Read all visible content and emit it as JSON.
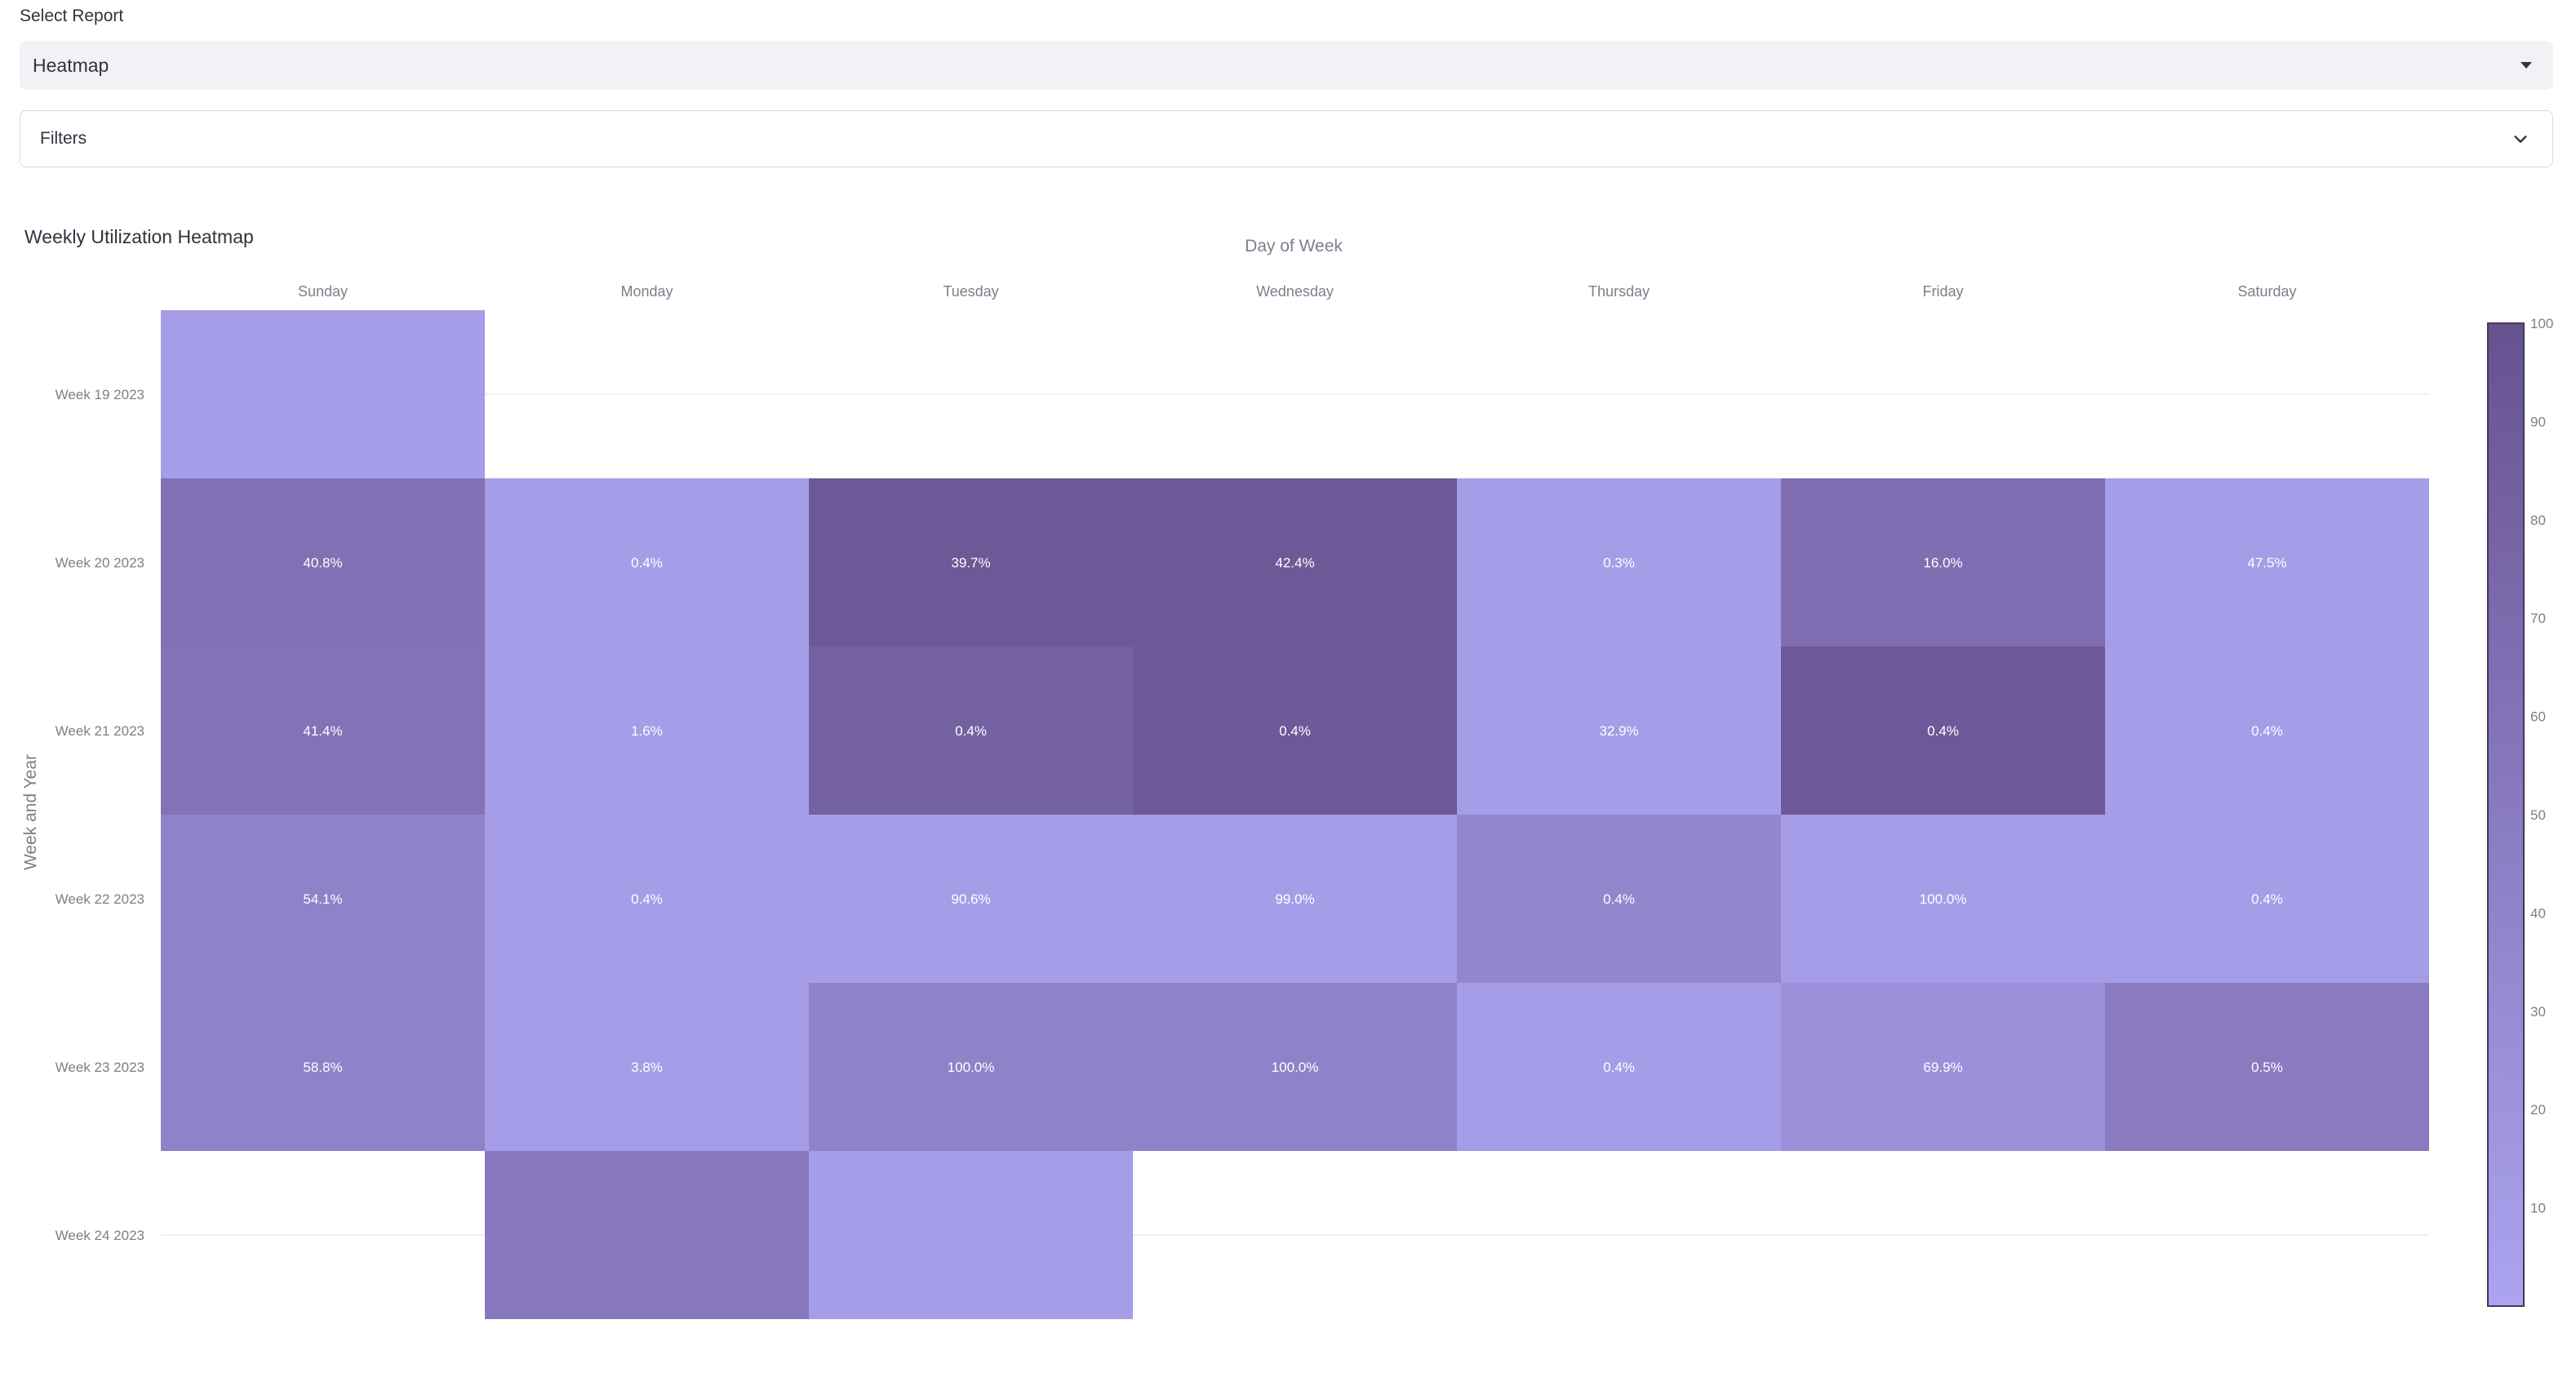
{
  "report_select": {
    "label": "Select Report",
    "value": "Heatmap"
  },
  "filters": {
    "label": "Filters"
  },
  "chart_data": {
    "type": "heatmap",
    "title": "Weekly Utilization Heatmap",
    "xlabel": "Day of Week",
    "ylabel": "Week and Year",
    "x": [
      "Sunday",
      "Monday",
      "Tuesday",
      "Wednesday",
      "Thursday",
      "Friday",
      "Saturday"
    ],
    "y": [
      "Week 19 2023",
      "Week 20 2023",
      "Week 21 2023",
      "Week 22 2023",
      "Week 23 2023",
      "Week 24 2023"
    ],
    "cells": [
      {
        "row": 0,
        "col": 0,
        "color_value": 8,
        "label": ""
      },
      {
        "row": 1,
        "col": 0,
        "color_value": 62,
        "label": "40.8%"
      },
      {
        "row": 1,
        "col": 1,
        "color_value": 8,
        "label": "0.4%"
      },
      {
        "row": 1,
        "col": 2,
        "color_value": 92,
        "label": "39.7%"
      },
      {
        "row": 1,
        "col": 3,
        "color_value": 92,
        "label": "42.4%"
      },
      {
        "row": 1,
        "col": 4,
        "color_value": 8,
        "label": "0.3%"
      },
      {
        "row": 1,
        "col": 5,
        "color_value": 65,
        "label": "16.0%"
      },
      {
        "row": 1,
        "col": 6,
        "color_value": 8,
        "label": "47.5%"
      },
      {
        "row": 2,
        "col": 0,
        "color_value": 60,
        "label": "41.4%"
      },
      {
        "row": 2,
        "col": 1,
        "color_value": 8,
        "label": "1.6%"
      },
      {
        "row": 2,
        "col": 2,
        "color_value": 82,
        "label": "0.4%"
      },
      {
        "row": 2,
        "col": 3,
        "color_value": 92,
        "label": "0.4%"
      },
      {
        "row": 2,
        "col": 4,
        "color_value": 8,
        "label": "32.9%"
      },
      {
        "row": 2,
        "col": 5,
        "color_value": 92,
        "label": "0.4%"
      },
      {
        "row": 2,
        "col": 6,
        "color_value": 8,
        "label": "0.4%"
      },
      {
        "row": 3,
        "col": 0,
        "color_value": 42,
        "label": "54.1%"
      },
      {
        "row": 3,
        "col": 1,
        "color_value": 8,
        "label": "0.4%"
      },
      {
        "row": 3,
        "col": 2,
        "color_value": 8,
        "label": "90.6%"
      },
      {
        "row": 3,
        "col": 3,
        "color_value": 8,
        "label": "99.0%"
      },
      {
        "row": 3,
        "col": 4,
        "color_value": 36,
        "label": "0.4%"
      },
      {
        "row": 3,
        "col": 5,
        "color_value": 8,
        "label": "100.0%"
      },
      {
        "row": 3,
        "col": 6,
        "color_value": 8,
        "label": "0.4%"
      },
      {
        "row": 4,
        "col": 0,
        "color_value": 42,
        "label": "58.8%"
      },
      {
        "row": 4,
        "col": 1,
        "color_value": 8,
        "label": "3.8%"
      },
      {
        "row": 4,
        "col": 2,
        "color_value": 42,
        "label": "100.0%"
      },
      {
        "row": 4,
        "col": 3,
        "color_value": 42,
        "label": "100.0%"
      },
      {
        "row": 4,
        "col": 4,
        "color_value": 8,
        "label": "0.4%"
      },
      {
        "row": 4,
        "col": 5,
        "color_value": 24,
        "label": "69.9%"
      },
      {
        "row": 4,
        "col": 6,
        "color_value": 50,
        "label": "0.5%"
      },
      {
        "row": 5,
        "col": 1,
        "color_value": 52,
        "label": ""
      },
      {
        "row": 5,
        "col": 2,
        "color_value": 8,
        "label": ""
      }
    ],
    "colorbar": {
      "ticks": [
        10,
        20,
        30,
        40,
        50,
        60,
        70,
        80,
        90,
        100
      ],
      "range": [
        0,
        100
      ],
      "low_color": "#aca4f0",
      "high_color": "#675290"
    },
    "grid": true,
    "legend_placement": "right"
  },
  "colors": {
    "axis_text": "#7a7f8a",
    "cell_text": "#ffffff",
    "gridline": "#ececf0"
  }
}
